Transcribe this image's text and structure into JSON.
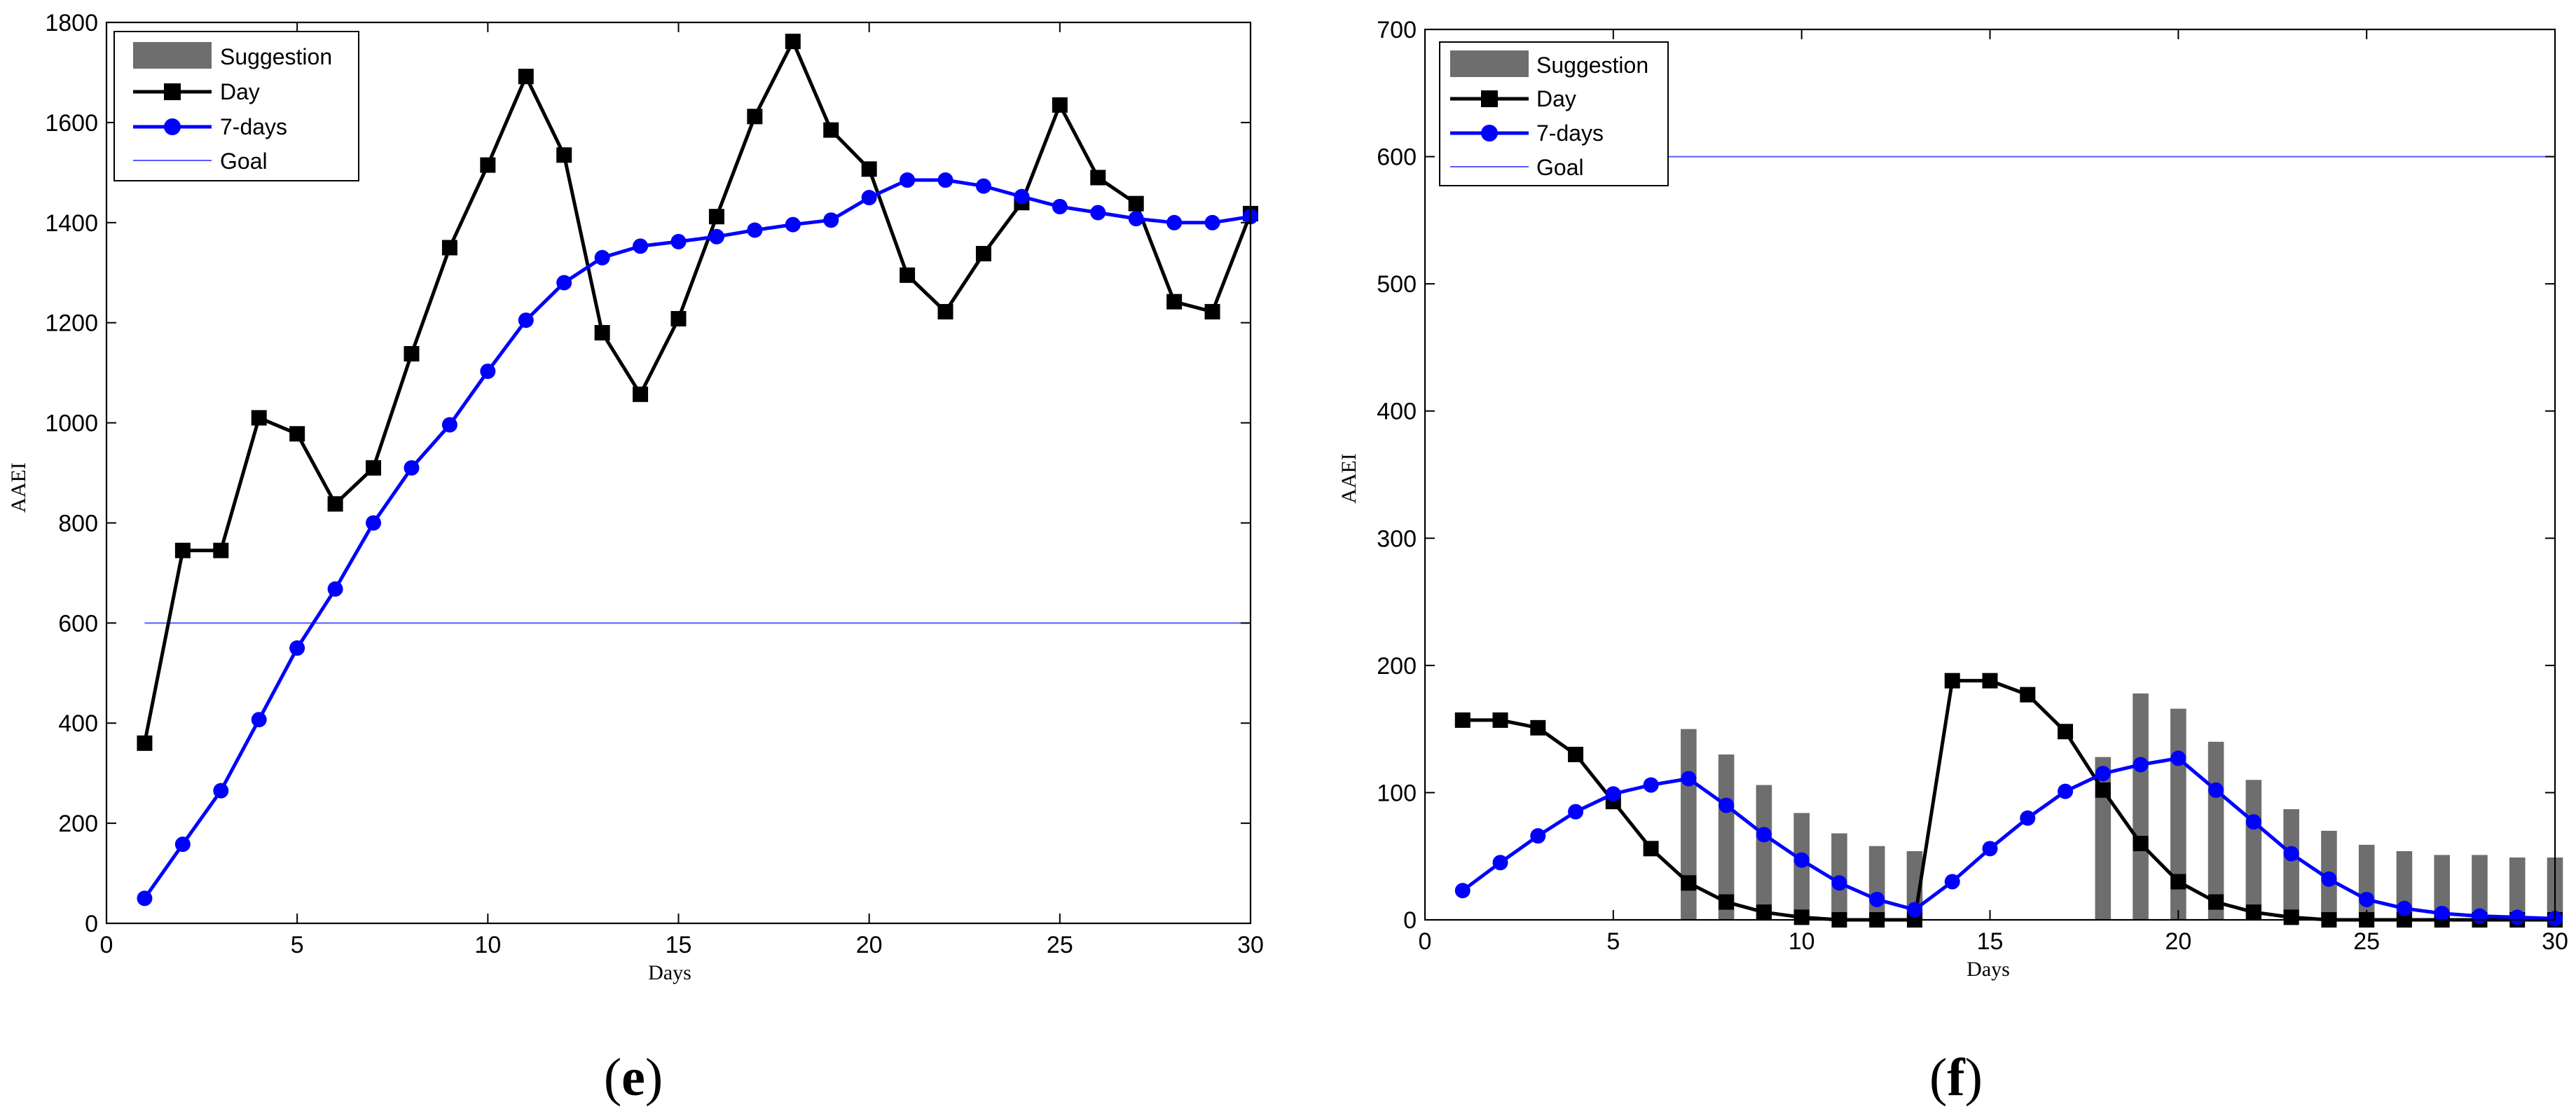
{
  "chart_data": [
    {
      "panel_label": "e",
      "type": "line",
      "xlabel": "Days",
      "ylabel": "AAEI",
      "xlim": [
        0,
        30
      ],
      "ylim": [
        0,
        1800
      ],
      "xticks": [
        0,
        5,
        10,
        15,
        20,
        25,
        30
      ],
      "yticks": [
        0,
        200,
        400,
        600,
        800,
        1000,
        1200,
        1400,
        1600,
        1800
      ],
      "legend": {
        "placement": "top-left",
        "entries": [
          "Suggestion",
          "Day",
          "7-days",
          "Goal"
        ]
      },
      "goal": 600,
      "series": [
        {
          "name": "Day",
          "color": "#000000",
          "marker": "square",
          "x": [
            1,
            2,
            3,
            4,
            5,
            6,
            7,
            8,
            9,
            10,
            11,
            12,
            13,
            14,
            15,
            16,
            17,
            18,
            19,
            20,
            21,
            22,
            23,
            24,
            25,
            26,
            27,
            28,
            29,
            30
          ],
          "values": [
            360,
            745,
            745,
            1010,
            978,
            838,
            910,
            1138,
            1350,
            1515,
            1692,
            1535,
            1180,
            1057,
            1208,
            1412,
            1612,
            1762,
            1585,
            1507,
            1295,
            1222,
            1338,
            1440,
            1635,
            1490,
            1438,
            1242,
            1222,
            1418
          ]
        },
        {
          "name": "7-days",
          "color": "#0000ff",
          "marker": "circle",
          "x": [
            1,
            2,
            3,
            4,
            5,
            6,
            7,
            8,
            9,
            10,
            11,
            12,
            13,
            14,
            15,
            16,
            17,
            18,
            19,
            20,
            21,
            22,
            23,
            24,
            25,
            26,
            27,
            28,
            29,
            30
          ],
          "values": [
            50,
            158,
            265,
            407,
            550,
            668,
            800,
            910,
            996,
            1103,
            1205,
            1280,
            1330,
            1353,
            1362,
            1372,
            1385,
            1396,
            1405,
            1450,
            1485,
            1485,
            1473,
            1452,
            1432,
            1420,
            1408,
            1400,
            1400,
            1412
          ]
        }
      ],
      "bars": {
        "name": "Suggestion",
        "color": "#6e6e6e",
        "x": [],
        "values": []
      }
    },
    {
      "panel_label": "f",
      "type": "line",
      "xlabel": "Days",
      "ylabel": "AAEI",
      "xlim": [
        0,
        30
      ],
      "ylim": [
        0,
        700
      ],
      "xticks": [
        0,
        5,
        10,
        15,
        20,
        25,
        30
      ],
      "yticks": [
        0,
        100,
        200,
        300,
        400,
        500,
        600,
        700
      ],
      "legend": {
        "placement": "top-left",
        "entries": [
          "Suggestion",
          "Day",
          "7-days",
          "Goal"
        ]
      },
      "goal": 600,
      "series": [
        {
          "name": "Day",
          "color": "#000000",
          "marker": "square",
          "x": [
            1,
            2,
            3,
            4,
            5,
            6,
            7,
            8,
            9,
            10,
            11,
            12,
            13,
            14,
            15,
            16,
            17,
            18,
            19,
            20,
            21,
            22,
            23,
            24,
            25,
            26,
            27,
            28,
            29,
            30
          ],
          "values": [
            157,
            157,
            151,
            130,
            93,
            56,
            29,
            14,
            6,
            2,
            0,
            0,
            0,
            188,
            188,
            177,
            148,
            102,
            60,
            30,
            14,
            6,
            2,
            0,
            0,
            0,
            0,
            0,
            0,
            0
          ]
        },
        {
          "name": "7-days",
          "color": "#0000ff",
          "marker": "circle",
          "x": [
            1,
            2,
            3,
            4,
            5,
            6,
            7,
            8,
            9,
            10,
            11,
            12,
            13,
            14,
            15,
            16,
            17,
            18,
            19,
            20,
            21,
            22,
            23,
            24,
            25,
            26,
            27,
            28,
            29,
            30
          ],
          "values": [
            23,
            45,
            66,
            85,
            99,
            106,
            111,
            90,
            67,
            47,
            29,
            16,
            8,
            30,
            56,
            80,
            101,
            115,
            122,
            127,
            102,
            77,
            52,
            32,
            16,
            9,
            5,
            3,
            2,
            1
          ]
        }
      ],
      "bars": {
        "name": "Suggestion",
        "color": "#6e6e6e",
        "x": [
          7,
          8,
          9,
          10,
          11,
          12,
          13,
          18,
          19,
          20,
          21,
          22,
          23,
          24,
          25,
          26,
          27,
          28,
          29,
          30
        ],
        "values": [
          150,
          130,
          106,
          84,
          68,
          58,
          54,
          128,
          178,
          166,
          140,
          110,
          87,
          70,
          59,
          54,
          51,
          51,
          49,
          49
        ]
      }
    }
  ]
}
